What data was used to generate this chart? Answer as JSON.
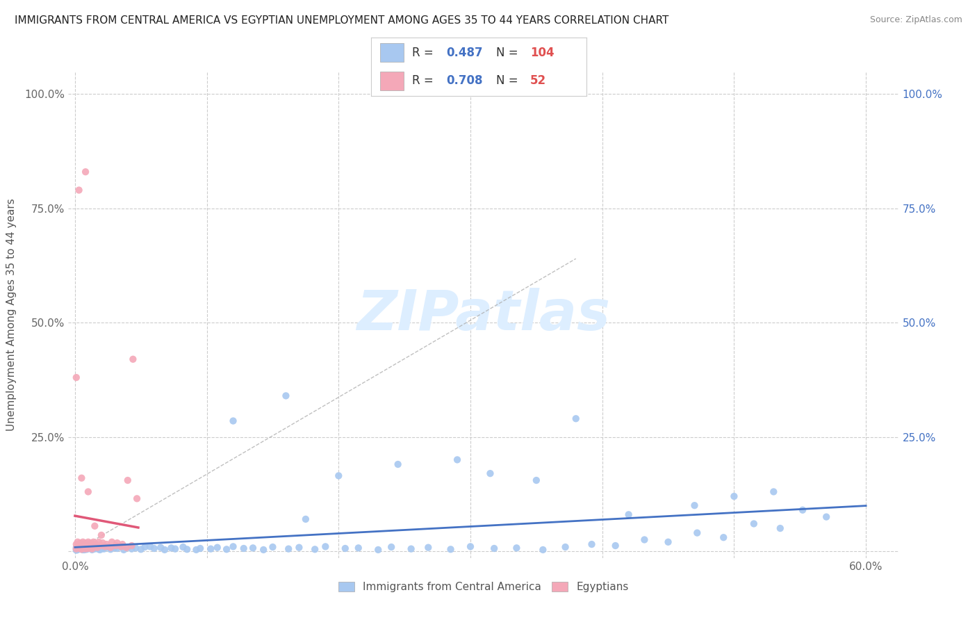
{
  "title": "IMMIGRANTS FROM CENTRAL AMERICA VS EGYPTIAN UNEMPLOYMENT AMONG AGES 35 TO 44 YEARS CORRELATION CHART",
  "source": "Source: ZipAtlas.com",
  "ylabel": "Unemployment Among Ages 35 to 44 years",
  "blue_scatter_color": "#a8c8f0",
  "pink_scatter_color": "#f4a8b8",
  "blue_line_color": "#4472c4",
  "pink_line_color": "#e05878",
  "dash_line_color": "#b0b0b0",
  "watermark_text": "ZIPatlas",
  "watermark_color": "#ddeeff",
  "background_color": "#ffffff",
  "grid_color": "#cccccc",
  "xlim": [
    -0.005,
    0.625
  ],
  "ylim": [
    -0.015,
    1.05
  ],
  "x_ticks": [
    0.0,
    0.1,
    0.2,
    0.3,
    0.4,
    0.5,
    0.6
  ],
  "x_tick_labels": [
    "0.0%",
    "",
    "",
    "",
    "",
    "",
    "60.0%"
  ],
  "y_ticks": [
    0.0,
    0.25,
    0.5,
    0.75,
    1.0
  ],
  "y_tick_labels_left": [
    "",
    "25.0%",
    "50.0%",
    "75.0%",
    "100.0%"
  ],
  "y_tick_labels_right": [
    "",
    "25.0%",
    "50.0%",
    "75.0%",
    "100.0%"
  ],
  "right_tick_color": "#4472c4",
  "legend_R_blue": "0.487",
  "legend_N_blue": "104",
  "legend_R_pink": "0.708",
  "legend_N_pink": "52",
  "legend_value_color": "#4472c4",
  "legend_N_color": "#e05050",
  "bottom_legend_blue": "Immigrants from Central America",
  "bottom_legend_pink": "Egyptians",
  "blue_scatter_x": [
    0.001,
    0.002,
    0.003,
    0.001,
    0.004,
    0.002,
    0.005,
    0.003,
    0.006,
    0.004,
    0.007,
    0.005,
    0.008,
    0.006,
    0.009,
    0.007,
    0.01,
    0.008,
    0.011,
    0.009,
    0.012,
    0.01,
    0.013,
    0.011,
    0.015,
    0.013,
    0.018,
    0.016,
    0.021,
    0.019,
    0.025,
    0.022,
    0.03,
    0.027,
    0.035,
    0.032,
    0.04,
    0.037,
    0.046,
    0.043,
    0.053,
    0.05,
    0.06,
    0.057,
    0.068,
    0.065,
    0.076,
    0.073,
    0.085,
    0.082,
    0.095,
    0.092,
    0.108,
    0.103,
    0.12,
    0.115,
    0.135,
    0.128,
    0.15,
    0.143,
    0.17,
    0.162,
    0.19,
    0.182,
    0.215,
    0.205,
    0.24,
    0.23,
    0.268,
    0.255,
    0.3,
    0.285,
    0.335,
    0.318,
    0.372,
    0.355,
    0.41,
    0.392,
    0.45,
    0.432,
    0.492,
    0.472,
    0.535,
    0.515,
    0.57,
    0.552,
    0.003,
    0.008,
    0.001,
    0.006,
    0.38,
    0.47,
    0.53,
    0.002,
    0.12,
    0.2,
    0.29,
    0.16,
    0.35,
    0.42,
    0.175,
    0.245,
    0.315,
    0.5
  ],
  "blue_scatter_y": [
    0.005,
    0.003,
    0.008,
    0.002,
    0.006,
    0.01,
    0.004,
    0.007,
    0.003,
    0.009,
    0.005,
    0.008,
    0.004,
    0.006,
    0.01,
    0.003,
    0.007,
    0.005,
    0.009,
    0.004,
    0.006,
    0.008,
    0.003,
    0.007,
    0.005,
    0.01,
    0.004,
    0.008,
    0.006,
    0.003,
    0.009,
    0.005,
    0.007,
    0.004,
    0.01,
    0.006,
    0.008,
    0.003,
    0.007,
    0.005,
    0.009,
    0.004,
    0.006,
    0.01,
    0.003,
    0.008,
    0.005,
    0.007,
    0.004,
    0.009,
    0.006,
    0.003,
    0.008,
    0.005,
    0.01,
    0.004,
    0.007,
    0.006,
    0.009,
    0.003,
    0.008,
    0.005,
    0.01,
    0.004,
    0.007,
    0.006,
    0.009,
    0.003,
    0.008,
    0.005,
    0.01,
    0.004,
    0.007,
    0.006,
    0.009,
    0.003,
    0.012,
    0.015,
    0.02,
    0.025,
    0.03,
    0.04,
    0.05,
    0.06,
    0.075,
    0.09,
    0.01,
    0.012,
    0.008,
    0.015,
    0.29,
    0.1,
    0.13,
    0.005,
    0.285,
    0.165,
    0.2,
    0.34,
    0.155,
    0.08,
    0.07,
    0.19,
    0.17,
    0.12
  ],
  "pink_scatter_x": [
    0.001,
    0.002,
    0.001,
    0.003,
    0.002,
    0.004,
    0.003,
    0.005,
    0.004,
    0.006,
    0.005,
    0.007,
    0.006,
    0.008,
    0.007,
    0.009,
    0.008,
    0.01,
    0.009,
    0.011,
    0.01,
    0.012,
    0.011,
    0.013,
    0.012,
    0.015,
    0.014,
    0.017,
    0.016,
    0.02,
    0.018,
    0.023,
    0.021,
    0.027,
    0.024,
    0.031,
    0.028,
    0.035,
    0.032,
    0.039,
    0.036,
    0.043,
    0.04,
    0.047,
    0.044,
    0.001,
    0.005,
    0.01,
    0.003,
    0.008,
    0.015,
    0.02
  ],
  "pink_scatter_y": [
    0.005,
    0.01,
    0.015,
    0.008,
    0.02,
    0.006,
    0.012,
    0.004,
    0.018,
    0.007,
    0.015,
    0.01,
    0.02,
    0.005,
    0.012,
    0.008,
    0.018,
    0.006,
    0.015,
    0.01,
    0.02,
    0.007,
    0.015,
    0.005,
    0.018,
    0.01,
    0.02,
    0.008,
    0.015,
    0.012,
    0.02,
    0.01,
    0.018,
    0.008,
    0.015,
    0.012,
    0.02,
    0.01,
    0.018,
    0.008,
    0.015,
    0.012,
    0.155,
    0.115,
    0.42,
    0.38,
    0.16,
    0.13,
    0.79,
    0.83,
    0.055,
    0.035
  ]
}
